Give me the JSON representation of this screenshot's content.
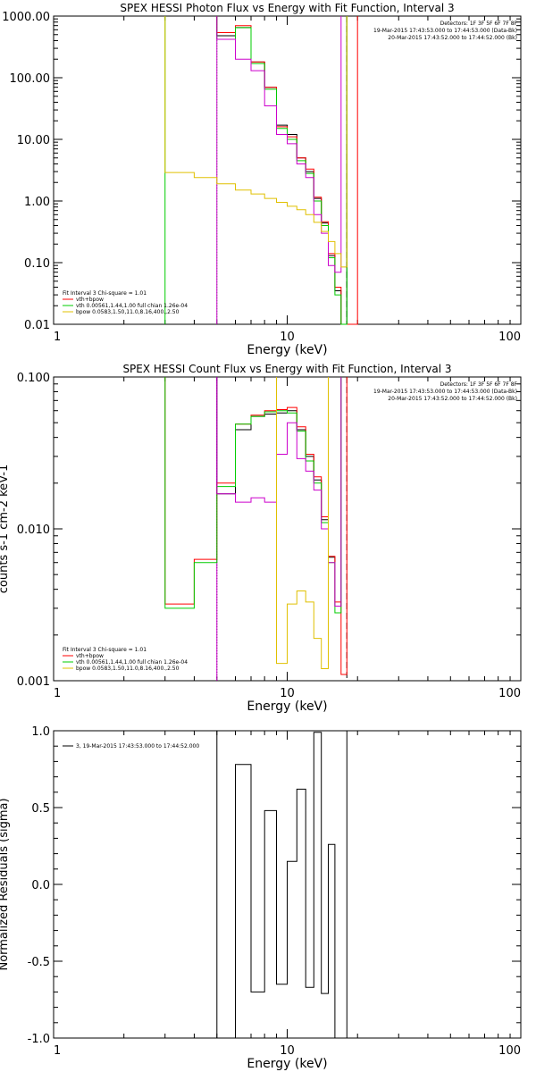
{
  "colors": {
    "background": "#ffffff",
    "axes": "#000000",
    "data": "#000000",
    "total_fit": "#ff0000",
    "vth": "#00cc00",
    "bpow": "#e0c000",
    "background_model": "#cc00cc"
  },
  "chart_data": [
    {
      "type": "line",
      "title": "SPEX HESSI Photon Flux vs Energy with Fit Function, Interval 3",
      "xlabel": "Energy (keV)",
      "ylabel": "",
      "xscale": "log",
      "yscale": "log",
      "xlim": [
        1,
        100
      ],
      "ylim": [
        0.01,
        1000
      ],
      "grid": false,
      "x_tick_labels": [
        "1",
        "10",
        "100"
      ],
      "y_tick_labels": [
        "0.01",
        "0.10",
        "1.00",
        "10.00",
        "100.00",
        "1000.00"
      ],
      "x_tick_values": [
        1,
        10,
        100
      ],
      "y_tick_values": [
        0.01,
        0.1,
        1,
        10,
        100,
        1000
      ],
      "header_lines": [
        "Detectors: 1F 3F 5F 6F 7F 8F",
        "19-Mar-2015 17:43:53.000 to 17:44:53.000 (Data-Bk)",
        "20-Mar-2015 17:43:52.000 to 17:44:52.000 (Bk)"
      ],
      "fit_label": "Fit Interval 3   Chi-square = 1.01",
      "legend": [
        {
          "label": "vth+bpow",
          "color": "#ff0000"
        },
        {
          "label": "vth 0.00561,1.44,1.00  full chian 1.26e-04",
          "color": "#00cc00"
        },
        {
          "label": "bpow 0.0583,1.50,11.0,8.16,400.,2.50",
          "color": "#e0c000"
        }
      ],
      "legend_placement": "bottom-left",
      "vlines": [
        {
          "x": 3.0,
          "color": "#00cc00",
          "style": "solid"
        },
        {
          "x": 5.0,
          "color": "#00cc00",
          "style": "dotted"
        },
        {
          "x": 5.0,
          "color": "#cc00cc",
          "style": "solid"
        },
        {
          "x": 18.0,
          "color": "#000000",
          "style": "dashed"
        }
      ],
      "bin_edges": [
        5.0,
        6.0,
        7.0,
        8.0,
        9.0,
        10.0,
        11.0,
        12.0,
        13.0,
        14.0,
        15.0,
        16.0,
        17.0,
        18.0,
        20.0
      ],
      "series": [
        {
          "name": "Data-Bk",
          "color": "#000000",
          "values": [
            480,
            650,
            180,
            70,
            17,
            12,
            5,
            3.0,
            1.1,
            0.44,
            0.13,
            0.035,
            0.01,
            null
          ]
        },
        {
          "name": "vth+bpow",
          "color": "#ff0000",
          "values": [
            540,
            700,
            180,
            70,
            16,
            11,
            5,
            3.3,
            1.15,
            0.46,
            0.14,
            0.04,
            0.01,
            0.01
          ]
        },
        {
          "name": "vth",
          "color": "#00cc00",
          "values": [
            420,
            650,
            170,
            65,
            15,
            10,
            4.5,
            2.8,
            1.0,
            0.4,
            0.12,
            0.03,
            0.007,
            null
          ]
        },
        {
          "name": "Bk",
          "color": "#cc00cc",
          "values": [
            420,
            200,
            130,
            35,
            12,
            8.5,
            4,
            2.4,
            0.6,
            0.3,
            0.09,
            0.07,
            null,
            null
          ]
        }
      ],
      "bpow_series": {
        "name": "bpow",
        "color": "#e0c000",
        "x": [
          3.0,
          4.0,
          5.0,
          6.0,
          7.0,
          8.0,
          9.0,
          10.0,
          11.0,
          12.0,
          13.0,
          14.0,
          15.0,
          16.0,
          17.0
        ],
        "values": [
          2.9,
          2.4,
          1.9,
          1.5,
          1.3,
          1.1,
          0.95,
          0.82,
          0.72,
          0.6,
          0.45,
          0.32,
          0.22,
          0.14,
          0.085
        ]
      }
    },
    {
      "type": "line",
      "title": "SPEX HESSI Count Flux vs Energy with Fit Function, Interval 3",
      "xlabel": "Energy (keV)",
      "ylabel": "counts s-1 cm-2 keV-1",
      "xscale": "log",
      "yscale": "log",
      "xlim": [
        1,
        100
      ],
      "ylim": [
        0.001,
        0.1
      ],
      "grid": false,
      "x_tick_labels": [
        "1",
        "10",
        "100"
      ],
      "y_tick_labels": [
        "0.001",
        "0.010",
        "0.100"
      ],
      "x_tick_values": [
        1,
        10,
        100
      ],
      "y_tick_values": [
        0.001,
        0.01,
        0.1
      ],
      "header_lines": [
        "Detectors: 1F 3F 5F 6F 7F 8F",
        "19-Mar-2015 17:43:53.000 to 17:44:53.000 (Data-Bk)",
        "20-Mar-2015 17:43:52.000 to 17:44:52.000 (Bk)"
      ],
      "fit_label": "Fit Interval 3   Chi-square = 1.01",
      "legend": [
        {
          "label": "vth+bpow",
          "color": "#ff0000"
        },
        {
          "label": "vth 0.00561,1.44,1.00  full chian 1.26e-04",
          "color": "#00cc00"
        },
        {
          "label": "bpow 0.0583,1.50,11.0,8.16,400.,2.50",
          "color": "#e0c000"
        }
      ],
      "legend_placement": "bottom-left",
      "vlines": [
        {
          "x": 5.0,
          "color": "#000000",
          "style": "dotted"
        },
        {
          "x": 5.0,
          "color": "#cc00cc",
          "style": "solid"
        },
        {
          "x": 18.0,
          "color": "#000000",
          "style": "dashed"
        }
      ],
      "bin_edges": [
        3.0,
        4.0,
        5.0,
        6.0,
        7.0,
        8.0,
        9.0,
        10.0,
        11.0,
        12.0,
        13.0,
        14.0,
        15.0,
        16.0,
        17.0,
        18.0,
        20.0
      ],
      "series": [
        {
          "name": "Data-Bk",
          "color": "#000000",
          "values": [
            null,
            null,
            0.017,
            0.045,
            0.055,
            0.057,
            0.058,
            0.06,
            0.045,
            0.03,
            0.021,
            0.0115,
            0.0065,
            0.0031,
            null,
            null
          ]
        },
        {
          "name": "vth+bpow",
          "color": "#ff0000",
          "values": [
            0.0032,
            0.0063,
            0.02,
            0.049,
            0.056,
            0.06,
            0.061,
            0.063,
            0.047,
            0.031,
            0.022,
            0.012,
            0.0066,
            0.0033,
            0.0011,
            null
          ]
        },
        {
          "name": "vth",
          "color": "#00cc00",
          "values": [
            0.003,
            0.006,
            0.019,
            0.049,
            0.055,
            0.059,
            0.06,
            0.058,
            0.044,
            0.028,
            0.02,
            0.011,
            0.006,
            0.0028,
            null,
            null
          ]
        },
        {
          "name": "Bk",
          "color": "#cc00cc",
          "values": [
            null,
            null,
            0.017,
            0.015,
            0.016,
            0.015,
            0.031,
            0.05,
            0.029,
            0.024,
            0.018,
            0.01,
            0.006,
            0.0031,
            null,
            null
          ]
        },
        {
          "name": "bpow",
          "color": "#e0c000",
          "values": [
            null,
            null,
            null,
            null,
            null,
            null,
            0.0013,
            0.0032,
            0.0039,
            0.0033,
            0.0019,
            0.0012,
            null,
            null,
            null,
            null
          ]
        }
      ]
    },
    {
      "type": "line",
      "title": "",
      "xlabel": "Energy (keV)",
      "ylabel": "Normalized Residuals (sigma)",
      "xscale": "log",
      "yscale": "linear",
      "xlim": [
        1,
        100
      ],
      "ylim": [
        -1.0,
        1.0
      ],
      "grid": false,
      "x_tick_labels": [
        "1",
        "10",
        "100"
      ],
      "y_tick_labels": [
        "-1.0",
        "-0.5",
        "0.0",
        "0.5",
        "1.0"
      ],
      "x_tick_values": [
        1,
        10,
        100
      ],
      "y_tick_values": [
        -1.0,
        -0.5,
        0.0,
        0.5,
        1.0
      ],
      "legend": [
        {
          "label": "3, 19-Mar-2015 17:43:53.000 to 17:44:52.000",
          "color": "#000000"
        }
      ],
      "legend_placement": "top-left",
      "bin_edges": [
        5.0,
        6.0,
        7.0,
        8.0,
        9.0,
        10.0,
        11.0,
        12.0,
        13.0,
        14.0,
        15.0,
        16.0,
        17.0,
        18.0
      ],
      "series": [
        {
          "name": "3, 19-Mar-2015 17:43:53.000 to 17:44:52.000",
          "color": "#000000",
          "values": [
            -1.0,
            0.78,
            -0.7,
            0.48,
            -0.65,
            0.15,
            0.62,
            -0.67,
            0.99,
            -0.71,
            0.26,
            -1.0,
            -1.0
          ]
        }
      ]
    }
  ]
}
